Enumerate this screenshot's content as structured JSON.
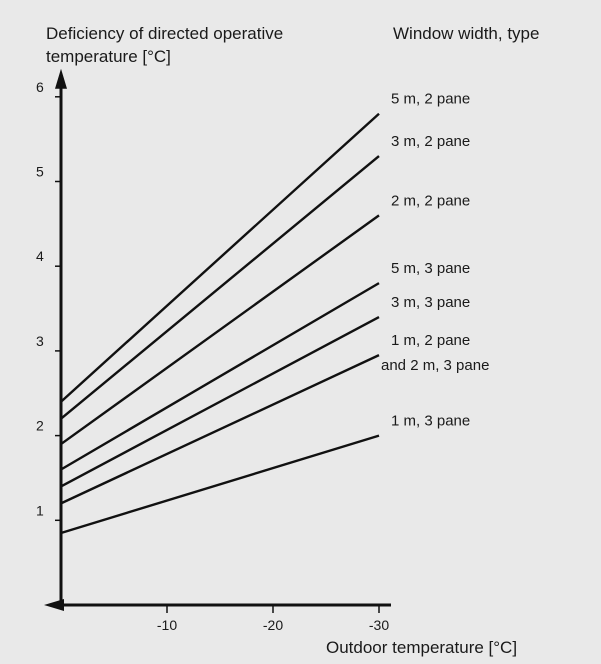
{
  "chart_data": {
    "type": "line",
    "ylabel_line1": "Deficiency of directed operative",
    "ylabel_line2": "temperature [°C]",
    "xlabel": "Outdoor temperature [°C]",
    "legend_title": "Window width, type",
    "xlim": [
      0,
      -30
    ],
    "ylim": [
      0,
      6
    ],
    "x_ticks": [
      -10,
      -20,
      -30
    ],
    "y_ticks": [
      1,
      2,
      3,
      4,
      5,
      6
    ],
    "series": [
      {
        "name": "5 m, 2 pane",
        "x": [
          0,
          -30
        ],
        "y": [
          2.4,
          5.8
        ]
      },
      {
        "name": "3 m, 2 pane",
        "x": [
          0,
          -30
        ],
        "y": [
          2.2,
          5.3
        ]
      },
      {
        "name": "2 m, 2 pane",
        "x": [
          0,
          -30
        ],
        "y": [
          1.9,
          4.6
        ]
      },
      {
        "name": "5 m, 3 pane",
        "x": [
          0,
          -30
        ],
        "y": [
          1.6,
          3.8
        ]
      },
      {
        "name": "3 m, 3 pane",
        "x": [
          0,
          -30
        ],
        "y": [
          1.4,
          3.4
        ]
      },
      {
        "name": "1 m, 2 pane",
        "name_line2": "and 2 m, 3 pane",
        "x": [
          0,
          -30
        ],
        "y": [
          1.2,
          2.95
        ]
      },
      {
        "name": "1 m, 3 pane",
        "x": [
          0,
          -30
        ],
        "y": [
          0.85,
          2.0
        ]
      }
    ],
    "grid": false,
    "line_color": "#111111",
    "background_color": "#e9e9e9"
  }
}
